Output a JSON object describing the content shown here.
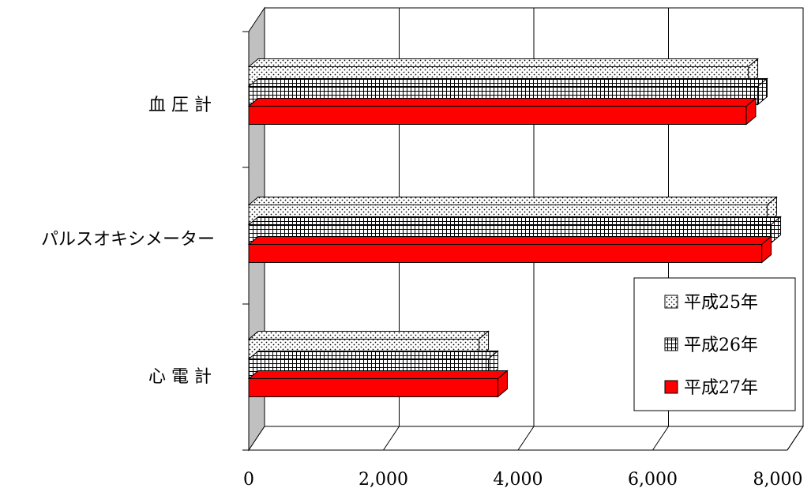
{
  "chart_data": {
    "type": "bar",
    "orientation": "horizontal",
    "categories": [
      "血 圧 計",
      "パルスオキシメーター",
      "心 電 計"
    ],
    "series": [
      {
        "name": "平成25年",
        "values": [
          7420,
          7700,
          3420
        ],
        "pattern": "dots",
        "color": "#ffffff"
      },
      {
        "name": "平成26年",
        "values": [
          7560,
          7760,
          3560
        ],
        "pattern": "grid",
        "color": "#ffffff"
      },
      {
        "name": "平成27年",
        "values": [
          7390,
          7620,
          3700
        ],
        "pattern": "solid",
        "color": "#ff0000"
      }
    ],
    "xlim": [
      0,
      8000
    ],
    "xticks": [
      "0",
      "2,000",
      "4,000",
      "6,000",
      "8,000"
    ],
    "grid": true,
    "legend_position": "right-bottom"
  }
}
